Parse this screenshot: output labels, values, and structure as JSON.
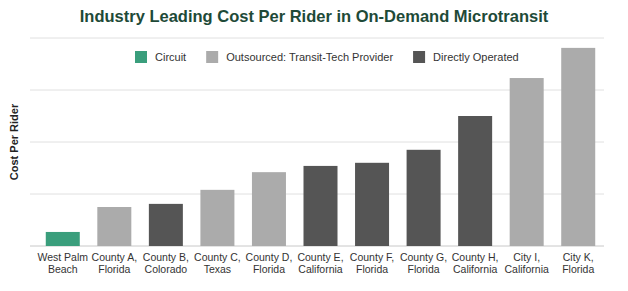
{
  "chart_data": {
    "type": "bar",
    "title": "Industry Leading Cost Per Rider in On-Demand Microtransit",
    "y_label": "Cost Per Rider",
    "categories": [
      "West Palm Beach",
      "County A, Florida",
      "County B, Colorado",
      "County C, Texas",
      "County D, Florida",
      "County E, California",
      "County F, Florida",
      "County G, Florida",
      "County H, California",
      "City I, California",
      "City K, Florida"
    ],
    "series": [
      {
        "name": "Circuit",
        "color": "#3a9e7c",
        "values": [
          0.27,
          null,
          null,
          null,
          null,
          null,
          null,
          null,
          null,
          null,
          null
        ]
      },
      {
        "name": "Outsourced: Transit-Tech Provider",
        "color": "#ababab",
        "values": [
          null,
          0.75,
          null,
          1.08,
          1.42,
          null,
          null,
          null,
          null,
          3.23,
          3.81
        ]
      },
      {
        "name": "Directly Operated",
        "color": "#555555",
        "values": [
          null,
          null,
          0.81,
          null,
          null,
          1.54,
          1.6,
          1.85,
          2.5,
          null,
          null
        ]
      }
    ],
    "stacked": true,
    "ylim": [
      0,
      4
    ],
    "yticks": [
      0,
      1,
      2,
      3,
      4
    ],
    "grid": true,
    "legend": "top",
    "tick_labels": false
  }
}
